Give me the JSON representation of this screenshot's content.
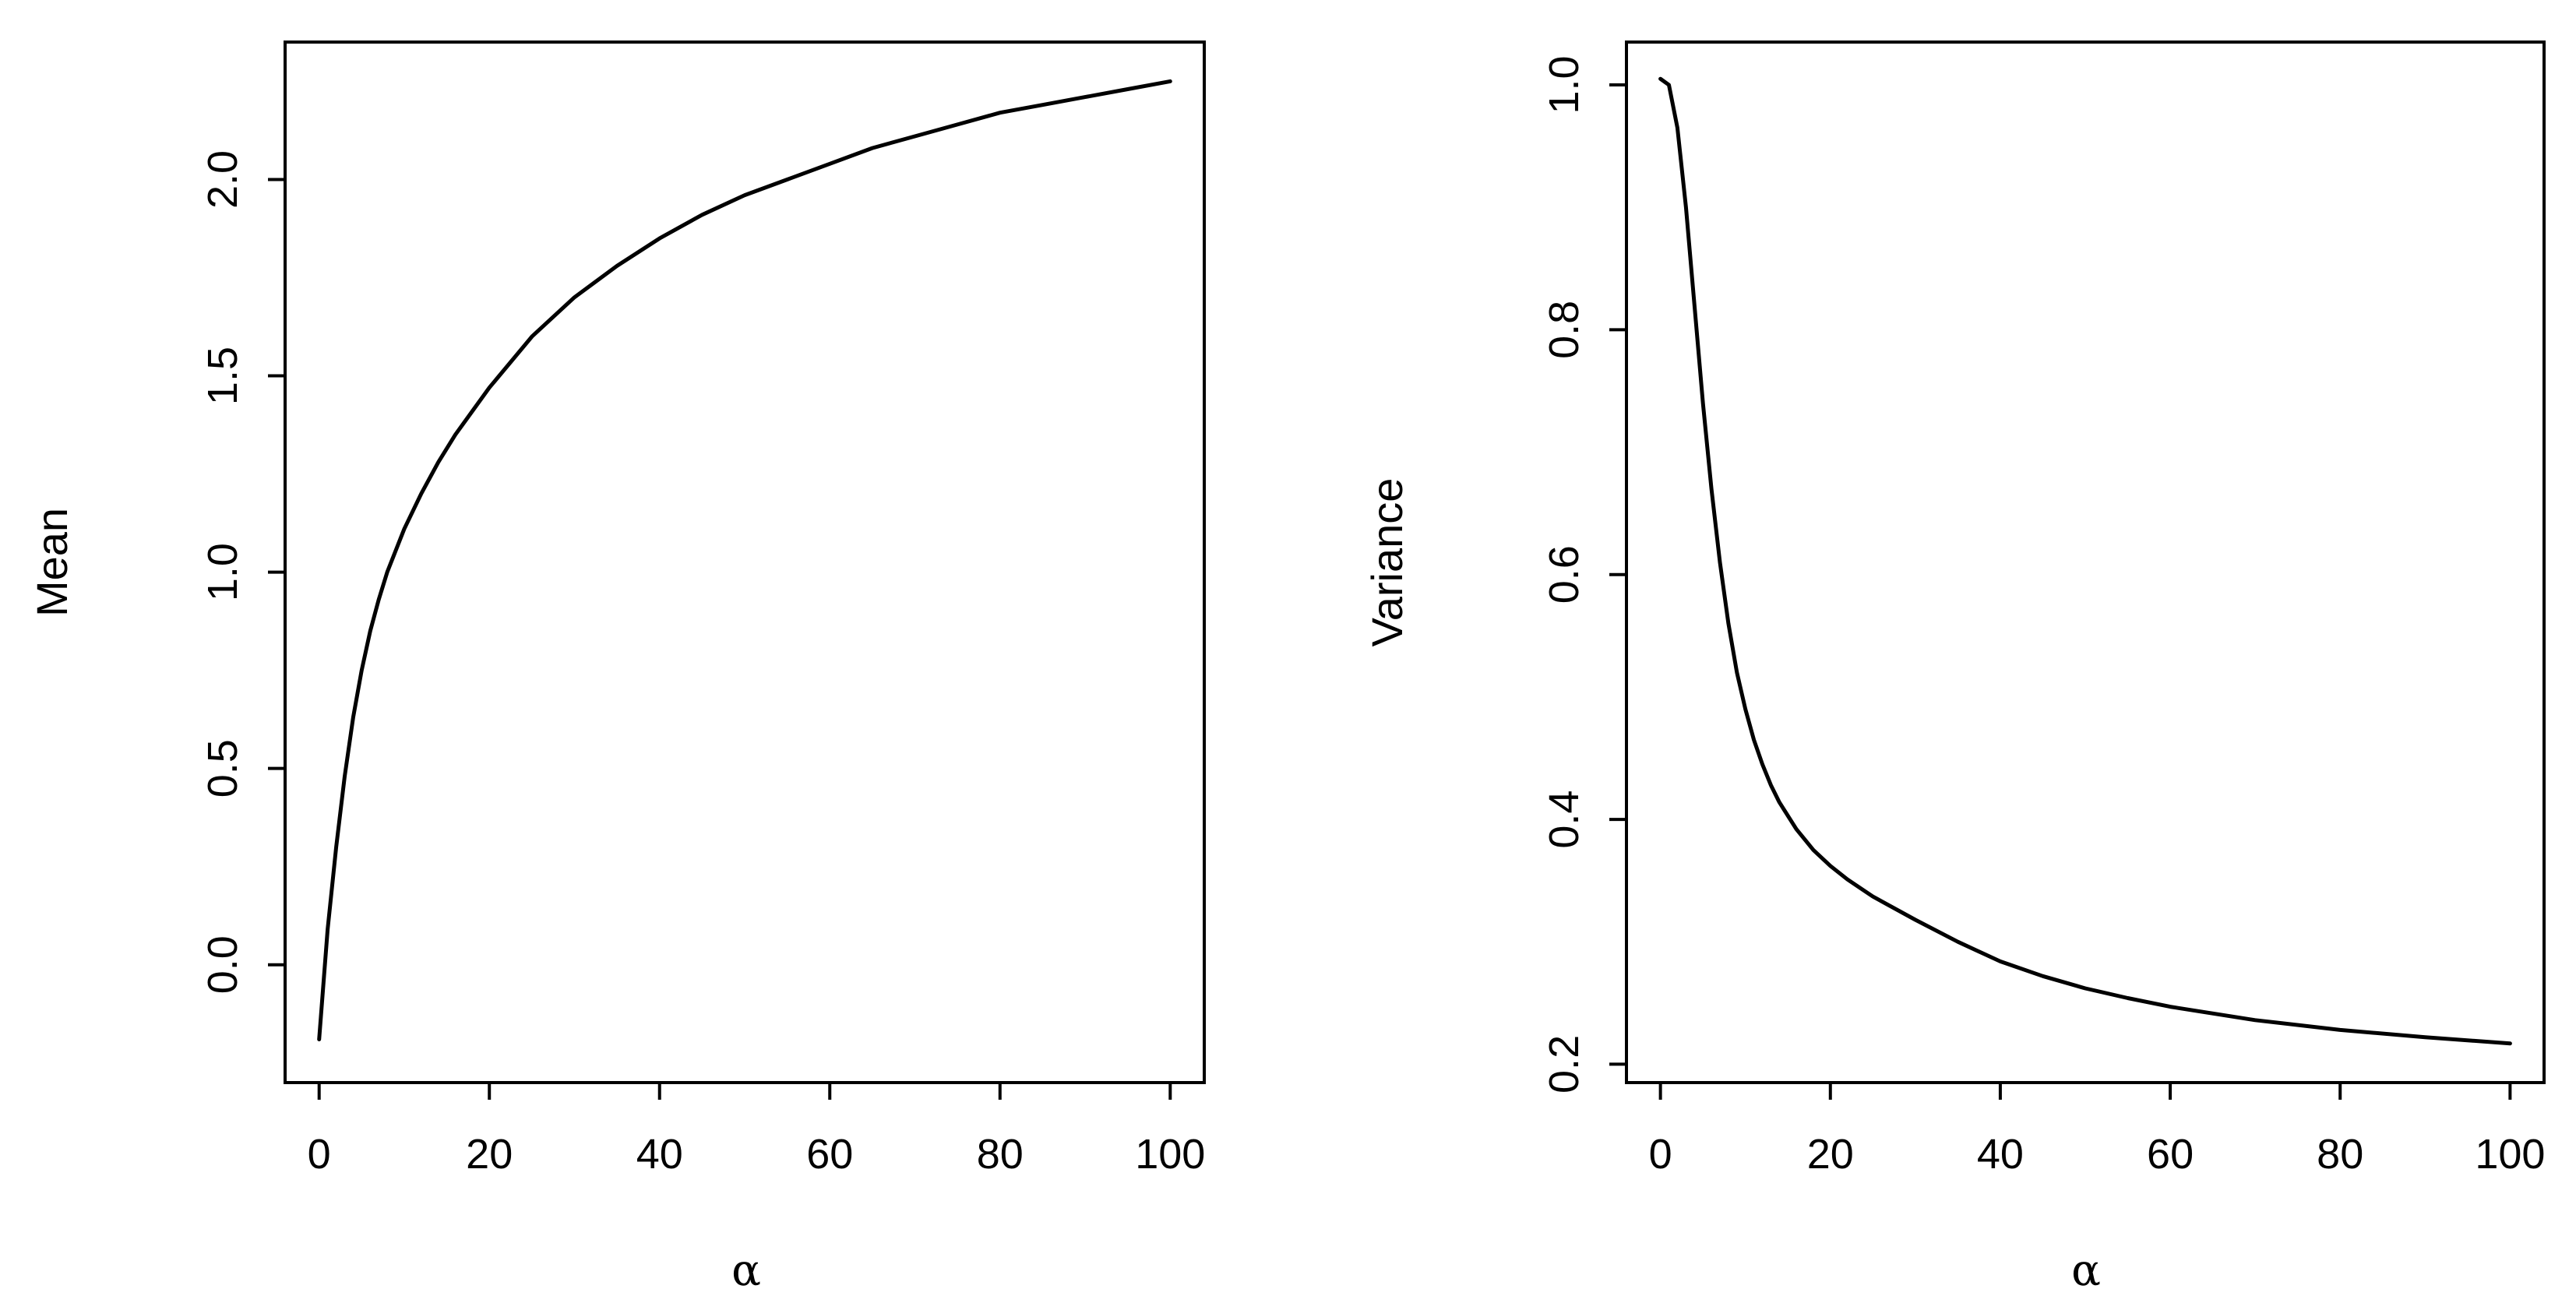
{
  "chart_data": [
    {
      "type": "line",
      "xlabel": "α",
      "ylabel": "Mean",
      "xlim": [
        -4,
        104
      ],
      "ylim": [
        -0.3,
        2.35
      ],
      "x_ticks": [
        0,
        20,
        40,
        60,
        80,
        100
      ],
      "x_tick_labels": [
        "0",
        "20",
        "40",
        "60",
        "80",
        "100"
      ],
      "y_ticks": [
        0.0,
        0.5,
        1.0,
        1.5,
        2.0
      ],
      "y_tick_labels": [
        "0.0",
        "0.5",
        "1.0",
        "1.5",
        "2.0"
      ],
      "grid": false,
      "series": [
        {
          "x": [
            0,
            1,
            2,
            3,
            4,
            5,
            6,
            7,
            8,
            10,
            12,
            14,
            16,
            18,
            20,
            25,
            30,
            35,
            40,
            45,
            50,
            55,
            60,
            65,
            70,
            75,
            80,
            85,
            90,
            95,
            100
          ],
          "y": [
            -0.19,
            0.09,
            0.3,
            0.48,
            0.63,
            0.75,
            0.85,
            0.93,
            1.0,
            1.11,
            1.2,
            1.28,
            1.35,
            1.41,
            1.47,
            1.6,
            1.7,
            1.78,
            1.85,
            1.91,
            1.96,
            2.0,
            2.04,
            2.08,
            2.11,
            2.14,
            2.17,
            2.19,
            2.21,
            2.23,
            2.25
          ]
        }
      ]
    },
    {
      "type": "line",
      "xlabel": "α",
      "ylabel": "Variance",
      "xlim": [
        -4,
        104
      ],
      "ylim": [
        0.185,
        1.035
      ],
      "x_ticks": [
        0,
        20,
        40,
        60,
        80,
        100
      ],
      "x_tick_labels": [
        "0",
        "20",
        "40",
        "60",
        "80",
        "100"
      ],
      "y_ticks": [
        0.2,
        0.4,
        0.6,
        0.8,
        1.0
      ],
      "y_tick_labels": [
        "0.2",
        "0.4",
        "0.6",
        "0.8",
        "1.0"
      ],
      "grid": false,
      "series": [
        {
          "x": [
            0,
            1,
            2,
            3,
            4,
            5,
            6,
            7,
            8,
            9,
            10,
            11,
            12,
            13,
            14,
            16,
            18,
            20,
            22,
            25,
            30,
            35,
            40,
            45,
            50,
            55,
            60,
            70,
            80,
            90,
            100
          ],
          "y": [
            1.005,
            1.0,
            0.965,
            0.9,
            0.82,
            0.74,
            0.67,
            0.61,
            0.56,
            0.52,
            0.49,
            0.465,
            0.445,
            0.428,
            0.414,
            0.392,
            0.375,
            0.362,
            0.351,
            0.337,
            0.318,
            0.3,
            0.284,
            0.272,
            0.262,
            0.254,
            0.247,
            0.236,
            0.228,
            0.222,
            0.217
          ]
        }
      ]
    }
  ]
}
